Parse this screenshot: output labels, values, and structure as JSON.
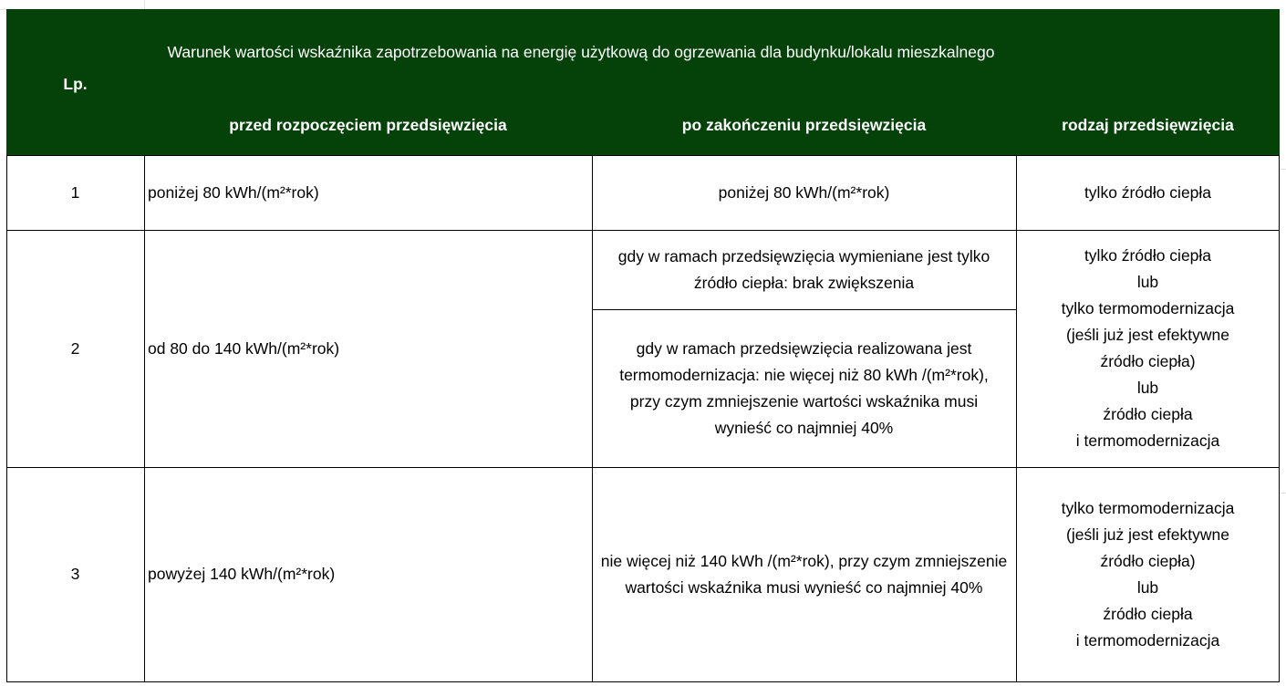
{
  "header": {
    "lp": "Lp.",
    "group_title": "Warunek wartości wskaźnika zapotrzebowania na energię użytkową do ogrzewania dla budynku/lokalu mieszkalnego",
    "before": "przed rozpoczęciem przedsięwzięcia",
    "after": "po zakończeniu przedsięwzięcia",
    "type": "rodzaj przedsięwzięcia"
  },
  "colors": {
    "header_bg": "#054209",
    "header_text": "#ffffff"
  },
  "rows": [
    {
      "lp": "1",
      "before": "poniżej 80 kWh/(m²*rok)",
      "after": [
        "poniżej 80 kWh/(m²*rok)"
      ],
      "type": [
        "tylko źródło ciepła"
      ]
    },
    {
      "lp": "2",
      "before": "od 80 do 140 kWh/(m²*rok)",
      "after": [
        "gdy w ramach przedsięwzięcia wymieniane jest tylko źródło ciepła: brak zwiększenia",
        "gdy w ramach przedsięwzięcia realizowana jest termomodernizacja: nie więcej niż 80 kWh /(m²*rok), przy czym zmniejszenie wartości wskaźnika musi wynieść co najmniej 40%"
      ],
      "type": [
        "tylko źródło ciepła",
        "lub",
        "tylko termomodernizacja",
        "(jeśli już jest efektywne",
        "źródło ciepła)",
        "lub",
        "źródło ciepła",
        "i termomodernizacja"
      ]
    },
    {
      "lp": "3",
      "before": "powyżej 140 kWh/(m²*rok)",
      "after": [
        "nie więcej niż 140 kWh /(m²*rok), przy czym zmniejszenie wartości wskaźnika musi wynieść co najmniej 40%"
      ],
      "type": [
        "tylko termomodernizacja",
        "(jeśli już jest efektywne",
        "źródło ciepła)",
        "lub",
        "źródło ciepła",
        "i termomodernizacja"
      ]
    }
  ]
}
